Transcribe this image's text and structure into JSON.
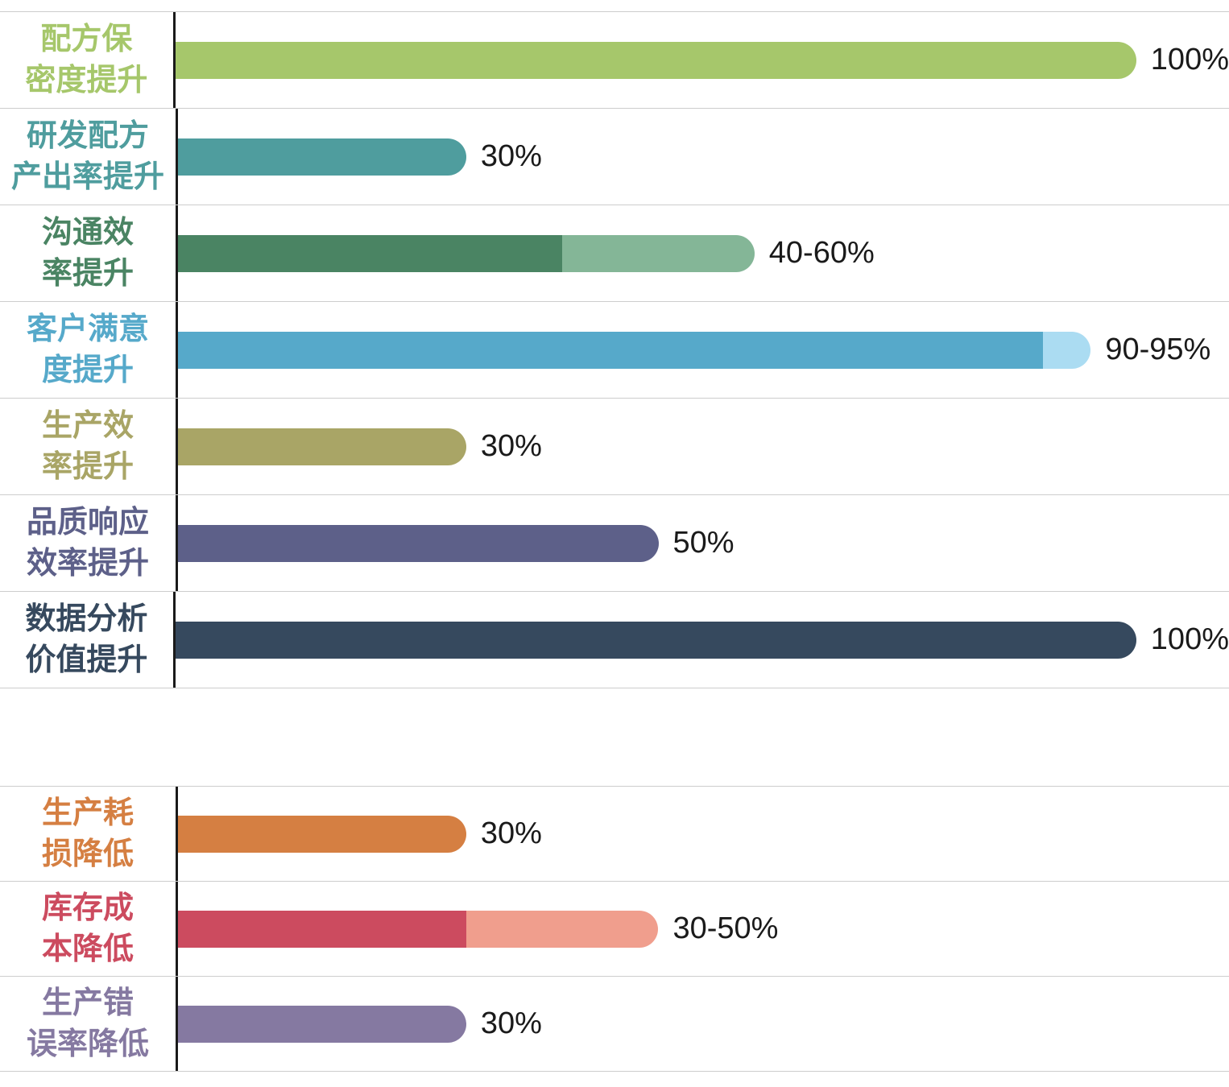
{
  "chart_data": {
    "type": "bar",
    "orientation": "horizontal",
    "unit": "%",
    "xlim": [
      0,
      100
    ],
    "grid": "row-separators",
    "legend": "none",
    "groups": [
      {
        "name": "benefit-increase-metrics",
        "rows": [
          {
            "label": "配方保\n密度提升",
            "value_label": "100%",
            "min": 100,
            "max": 100,
            "color": "#a6c76b",
            "color_light": null
          },
          {
            "label": "研发配方\n产出率提升",
            "value_label": "30%",
            "min": 30,
            "max": 30,
            "color": "#4f9d9e",
            "color_light": null
          },
          {
            "label": "沟通效\n率提升",
            "value_label": "40-60%",
            "min": 40,
            "max": 60,
            "color": "#4a8463",
            "color_light": "#84b697"
          },
          {
            "label": "客户满意\n度提升",
            "value_label": "90-95%",
            "min": 90,
            "max": 95,
            "color": "#56a9ca",
            "color_light": "#abdcf2"
          },
          {
            "label": "生产效\n率提升",
            "value_label": "30%",
            "min": 30,
            "max": 30,
            "color": "#a9a566",
            "color_light": null
          },
          {
            "label": "品质响应\n效率提升",
            "value_label": "50%",
            "min": 50,
            "max": 50,
            "color": "#5d6089",
            "color_light": null
          },
          {
            "label": "数据分析\n价值提升",
            "value_label": "100%",
            "min": 100,
            "max": 100,
            "color": "#36495e",
            "color_light": null
          }
        ]
      },
      {
        "name": "cost-reduction-metrics",
        "rows": [
          {
            "label": "生产耗\n损降低",
            "value_label": "30%",
            "min": 30,
            "max": 30,
            "color": "#d57f42",
            "color_light": null
          },
          {
            "label": "库存成\n本降低",
            "value_label": "30-50%",
            "min": 30,
            "max": 50,
            "color": "#cc4b5f",
            "color_light": "#f09e8d"
          },
          {
            "label": "生产错\n误率降低",
            "value_label": "30%",
            "min": 30,
            "max": 30,
            "color": "#8579a1",
            "color_light": null
          }
        ]
      }
    ]
  }
}
